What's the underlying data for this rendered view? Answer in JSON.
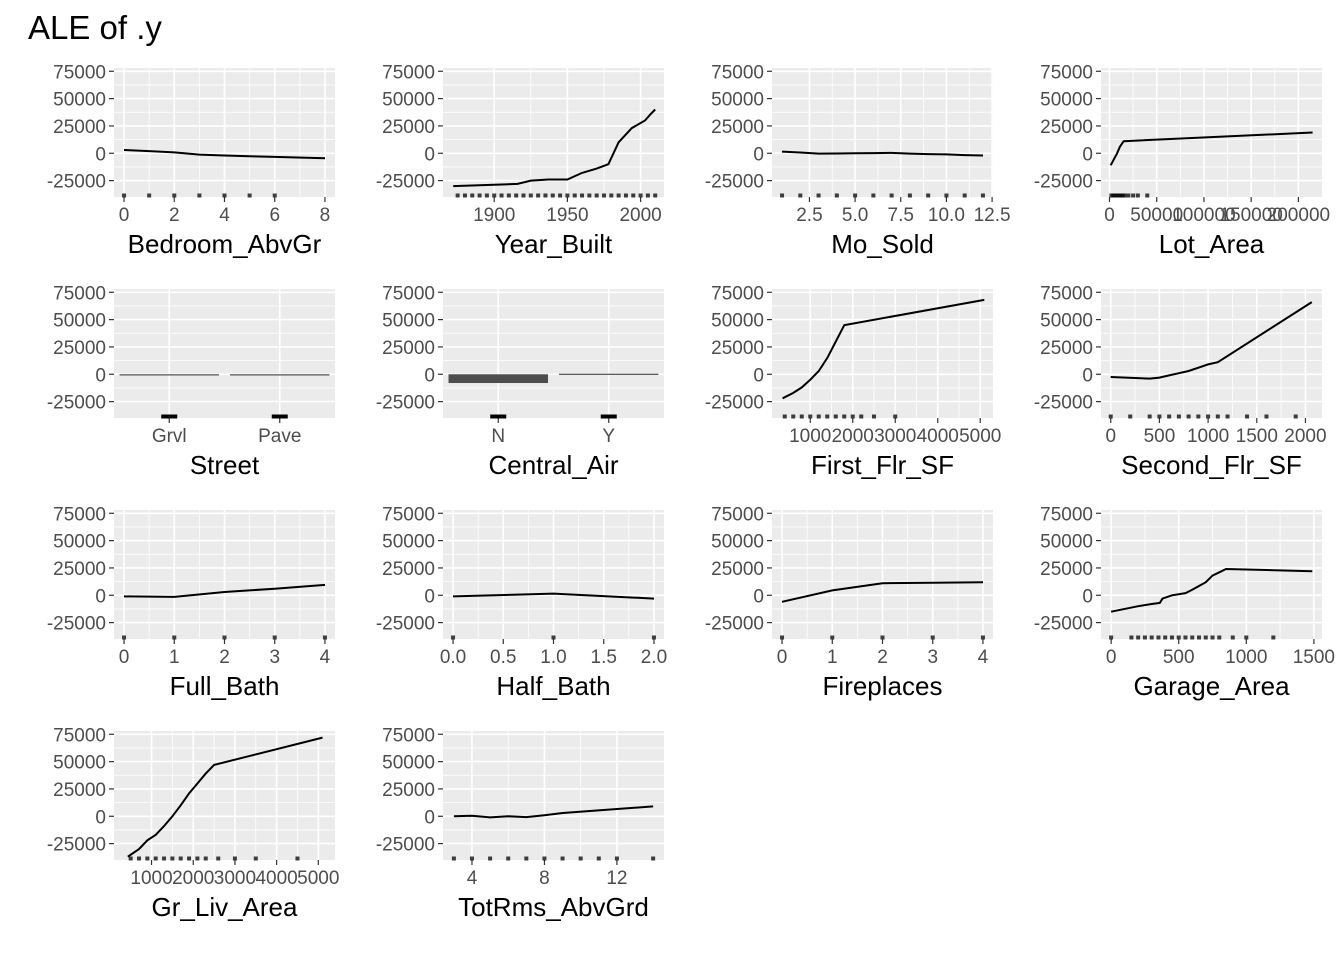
{
  "title": "ALE of .y",
  "chart_data": [
    {
      "type": "line",
      "xlabel": "Bedroom_AbvGr",
      "xlim": [
        -0.4,
        8.4
      ],
      "ylim": [
        -40000,
        78000
      ],
      "xticks": [
        0,
        2,
        4,
        6,
        8
      ],
      "xtick_labels": [
        "0",
        "2",
        "4",
        "6",
        "8"
      ],
      "yticks": [
        -25000,
        0,
        25000,
        50000,
        75000
      ],
      "ytick_labels": [
        "-25000",
        "0",
        "25000",
        "50000",
        "75000"
      ],
      "series": [
        {
          "x": [
            0,
            1,
            2,
            3,
            4,
            5,
            6,
            8
          ],
          "y": [
            3000,
            2000,
            800,
            -1200,
            -2000,
            -2700,
            -3300,
            -4500
          ]
        }
      ],
      "rug": [
        0,
        1,
        2,
        3,
        4,
        5,
        6
      ]
    },
    {
      "type": "line",
      "xlabel": "Year_Built",
      "xlim": [
        1865,
        2016
      ],
      "ylim": [
        -40000,
        78000
      ],
      "xticks": [
        1900,
        1950,
        2000
      ],
      "xtick_labels": [
        "1900",
        "1950",
        "2000"
      ],
      "yticks": [
        -25000,
        0,
        25000,
        50000,
        75000
      ],
      "ytick_labels": [
        "-25000",
        "0",
        "25000",
        "50000",
        "75000"
      ],
      "series": [
        {
          "x": [
            1872,
            1916,
            1925,
            1937,
            1950,
            1960,
            1970,
            1978,
            1985,
            1994,
            2003,
            2007,
            2010
          ],
          "y": [
            -30000,
            -28000,
            -25000,
            -24000,
            -24000,
            -18000,
            -14000,
            -10000,
            10000,
            23000,
            30000,
            36000,
            40000
          ]
        }
      ],
      "rug": [
        1875,
        1880,
        1885,
        1890,
        1895,
        1900,
        1905,
        1910,
        1915,
        1920,
        1925,
        1930,
        1935,
        1940,
        1945,
        1950,
        1955,
        1960,
        1965,
        1970,
        1975,
        1980,
        1985,
        1990,
        1995,
        2000,
        2005,
        2010
      ]
    },
    {
      "type": "line",
      "xlabel": "Mo_Sold",
      "xlim": [
        0.45,
        12.55
      ],
      "ylim": [
        -40000,
        78000
      ],
      "xticks": [
        2.5,
        5.0,
        7.5,
        10.0,
        12.5
      ],
      "xtick_labels": [
        "2.5",
        "5.0",
        "7.5",
        "10.0",
        "12.5"
      ],
      "yticks": [
        -25000,
        0,
        25000,
        50000,
        75000
      ],
      "ytick_labels": [
        "-25000",
        "0",
        "25000",
        "50000",
        "75000"
      ],
      "series": [
        {
          "x": [
            1,
            2,
            3,
            4,
            5,
            6,
            7,
            8,
            9,
            10,
            11,
            12
          ],
          "y": [
            1500,
            700,
            -300,
            -200,
            0,
            200,
            300,
            -300,
            -800,
            -1000,
            -1700,
            -2000
          ]
        }
      ],
      "rug": [
        1,
        2,
        3,
        4,
        5,
        6,
        7,
        8,
        9,
        10,
        11,
        12
      ]
    },
    {
      "type": "line",
      "xlabel": "Lot_Area",
      "xlim": [
        -9000,
        225000
      ],
      "ylim": [
        -40000,
        78000
      ],
      "xticks": [
        0,
        50000,
        100000,
        150000,
        200000
      ],
      "xtick_labels": [
        "0",
        "50000",
        "100000",
        "150000",
        "200000"
      ],
      "yticks": [
        -25000,
        0,
        25000,
        50000,
        75000
      ],
      "ytick_labels": [
        "-25000",
        "0",
        "25000",
        "50000",
        "75000"
      ],
      "series": [
        {
          "x": [
            1300,
            5000,
            8000,
            11000,
            15000,
            215000
          ],
          "y": [
            -11000,
            -5000,
            0,
            6000,
            11000,
            19000
          ]
        }
      ],
      "rug": [
        2000,
        4000,
        6000,
        8000,
        10000,
        12000,
        14000,
        16000,
        20000,
        25000,
        30000,
        40000
      ]
    },
    {
      "type": "bar",
      "xlabel": "Street",
      "categories": [
        "Grvl",
        "Pave"
      ],
      "values": [
        -300,
        0
      ],
      "ylim": [
        -40000,
        78000
      ],
      "yticks": [
        -25000,
        0,
        25000,
        50000,
        75000
      ],
      "ytick_labels": [
        "-25000",
        "0",
        "25000",
        "50000",
        "75000"
      ]
    },
    {
      "type": "bar",
      "xlabel": "Central_Air",
      "categories": [
        "N",
        "Y"
      ],
      "values": [
        -8000,
        500
      ],
      "ylim": [
        -40000,
        78000
      ],
      "yticks": [
        -25000,
        0,
        25000,
        50000,
        75000
      ],
      "ytick_labels": [
        "-25000",
        "0",
        "25000",
        "50000",
        "75000"
      ]
    },
    {
      "type": "line",
      "xlabel": "First_Flr_SF",
      "xlim": [
        100,
        5300
      ],
      "ylim": [
        -40000,
        78000
      ],
      "xticks": [
        1000,
        2000,
        3000,
        4000,
        5000
      ],
      "xtick_labels": [
        "1000",
        "2000",
        "3000",
        "4000",
        "5000"
      ],
      "yticks": [
        -25000,
        0,
        25000,
        50000,
        75000
      ],
      "ytick_labels": [
        "-25000",
        "0",
        "25000",
        "50000",
        "75000"
      ],
      "series": [
        {
          "x": [
            350,
            600,
            800,
            1000,
            1200,
            1400,
            1600,
            1800,
            5095
          ],
          "y": [
            -22000,
            -17000,
            -12000,
            -5000,
            3000,
            15000,
            30000,
            45000,
            68000
          ]
        }
      ],
      "rug": [
        400,
        600,
        800,
        1000,
        1200,
        1400,
        1600,
        1800,
        2000,
        2200,
        2500,
        3000
      ]
    },
    {
      "type": "line",
      "xlabel": "Second_Flr_SF",
      "xlim": [
        -100,
        2170
      ],
      "ylim": [
        -40000,
        78000
      ],
      "xticks": [
        0,
        500,
        1000,
        1500,
        2000
      ],
      "xtick_labels": [
        "0",
        "500",
        "1000",
        "1500",
        "2000"
      ],
      "yticks": [
        -25000,
        0,
        25000,
        50000,
        75000
      ],
      "ytick_labels": [
        "-25000",
        "0",
        "25000",
        "50000",
        "75000"
      ],
      "series": [
        {
          "x": [
            0,
            400,
            500,
            600,
            700,
            800,
            900,
            1000,
            1100,
            2065
          ],
          "y": [
            -2500,
            -4000,
            -3000,
            -1000,
            1000,
            3000,
            6000,
            9000,
            11000,
            66000
          ]
        }
      ],
      "rug": [
        0,
        200,
        400,
        500,
        600,
        700,
        800,
        900,
        1000,
        1100,
        1200,
        1400,
        1600,
        1900
      ]
    },
    {
      "type": "line",
      "xlabel": "Full_Bath",
      "xlim": [
        -0.2,
        4.2
      ],
      "ylim": [
        -40000,
        78000
      ],
      "xticks": [
        0,
        1,
        2,
        3,
        4
      ],
      "xtick_labels": [
        "0",
        "1",
        "2",
        "3",
        "4"
      ],
      "yticks": [
        -25000,
        0,
        25000,
        50000,
        75000
      ],
      "ytick_labels": [
        "-25000",
        "0",
        "25000",
        "50000",
        "75000"
      ],
      "series": [
        {
          "x": [
            0,
            1,
            2,
            3,
            4
          ],
          "y": [
            -1000,
            -1500,
            3000,
            6000,
            9500
          ]
        }
      ],
      "rug": [
        0,
        1,
        2,
        3,
        4
      ]
    },
    {
      "type": "line",
      "xlabel": "Half_Bath",
      "xlim": [
        -0.1,
        2.1
      ],
      "ylim": [
        -40000,
        78000
      ],
      "xticks": [
        0.0,
        0.5,
        1.0,
        1.5,
        2.0
      ],
      "xtick_labels": [
        "0.0",
        "0.5",
        "1.0",
        "1.5",
        "2.0"
      ],
      "yticks": [
        -25000,
        0,
        25000,
        50000,
        75000
      ],
      "ytick_labels": [
        "-25000",
        "0",
        "25000",
        "50000",
        "75000"
      ],
      "series": [
        {
          "x": [
            0,
            1,
            2
          ],
          "y": [
            -1000,
            1500,
            -3000
          ]
        }
      ],
      "rug": [
        0,
        1,
        2
      ]
    },
    {
      "type": "line",
      "xlabel": "Fireplaces",
      "xlim": [
        -0.2,
        4.2
      ],
      "ylim": [
        -40000,
        78000
      ],
      "xticks": [
        0,
        1,
        2,
        3,
        4
      ],
      "xtick_labels": [
        "0",
        "1",
        "2",
        "3",
        "4"
      ],
      "yticks": [
        -25000,
        0,
        25000,
        50000,
        75000
      ],
      "ytick_labels": [
        "-25000",
        "0",
        "25000",
        "50000",
        "75000"
      ],
      "series": [
        {
          "x": [
            0,
            1,
            2,
            3,
            4
          ],
          "y": [
            -6000,
            4500,
            11000,
            11500,
            12000
          ]
        }
      ],
      "rug": [
        0,
        1,
        2,
        3,
        4
      ]
    },
    {
      "type": "line",
      "xlabel": "Garage_Area",
      "xlim": [
        -75,
        1560
      ],
      "ylim": [
        -40000,
        78000
      ],
      "xticks": [
        0,
        500,
        1000,
        1500
      ],
      "xtick_labels": [
        "0",
        "500",
        "1000",
        "1500"
      ],
      "yticks": [
        -25000,
        0,
        25000,
        50000,
        75000
      ],
      "ytick_labels": [
        "-25000",
        "0",
        "25000",
        "50000",
        "75000"
      ],
      "series": [
        {
          "x": [
            0,
            200,
            300,
            360,
            380,
            450,
            550,
            600,
            700,
            750,
            800,
            850,
            1488
          ],
          "y": [
            -15000,
            -10000,
            -8000,
            -7000,
            -3000,
            0,
            2000,
            5000,
            12000,
            18000,
            21000,
            24000,
            22000
          ]
        }
      ],
      "rug": [
        0,
        150,
        200,
        250,
        300,
        350,
        400,
        450,
        500,
        550,
        600,
        650,
        700,
        750,
        800,
        900,
        1000,
        1200
      ]
    },
    {
      "type": "line",
      "xlabel": "Gr_Liv_Area",
      "xlim": [
        100,
        5400
      ],
      "ylim": [
        -40000,
        78000
      ],
      "xticks": [
        1000,
        2000,
        3000,
        4000,
        5000
      ],
      "xtick_labels": [
        "1000",
        "2000",
        "3000",
        "4000",
        "5000"
      ],
      "yticks": [
        -25000,
        0,
        25000,
        50000,
        75000
      ],
      "ytick_labels": [
        "-25000",
        "0",
        "25000",
        "50000",
        "75000"
      ],
      "series": [
        {
          "x": [
            430,
            700,
            900,
            1100,
            1300,
            1500,
            1700,
            1900,
            2100,
            2300,
            2500,
            5100
          ],
          "y": [
            -37000,
            -30000,
            -22000,
            -17000,
            -9000,
            0,
            10000,
            21000,
            30000,
            39000,
            47000,
            72000
          ]
        }
      ],
      "rug": [
        500,
        700,
        900,
        1100,
        1300,
        1500,
        1700,
        1900,
        2100,
        2300,
        2600,
        3000,
        3500,
        4500
      ]
    },
    {
      "type": "line",
      "xlabel": "TotRms_AbvGrd",
      "xlim": [
        2.4,
        14.6
      ],
      "ylim": [
        -40000,
        78000
      ],
      "xticks": [
        4,
        8,
        12
      ],
      "xtick_labels": [
        "4",
        "8",
        "12"
      ],
      "yticks": [
        -25000,
        0,
        25000,
        50000,
        75000
      ],
      "ytick_labels": [
        "-25000",
        "0",
        "25000",
        "50000",
        "75000"
      ],
      "series": [
        {
          "x": [
            3,
            4,
            5,
            6,
            7,
            8,
            9,
            14
          ],
          "y": [
            0,
            500,
            -1000,
            0,
            -800,
            1000,
            3000,
            9000
          ]
        }
      ],
      "rug": [
        3,
        4,
        5,
        6,
        7,
        8,
        9,
        10,
        11,
        12,
        14
      ]
    }
  ]
}
